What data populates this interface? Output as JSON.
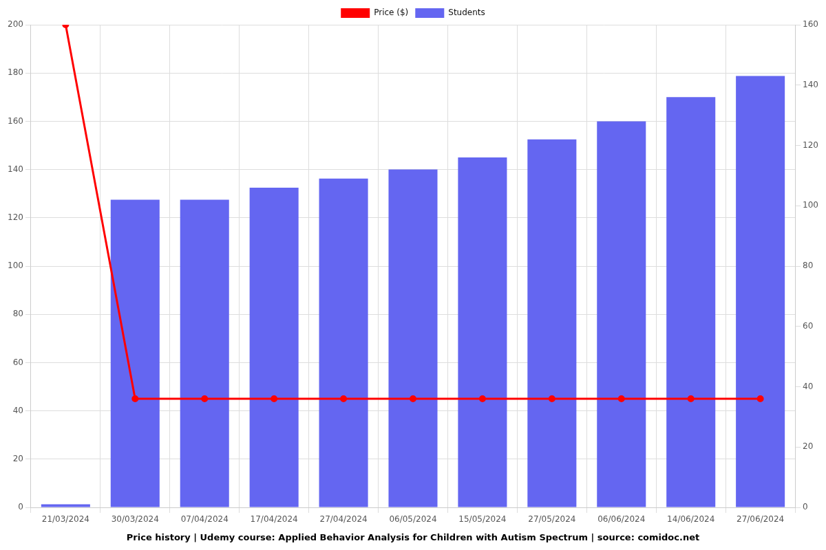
{
  "chart_data": {
    "type": "bar",
    "title": "Price history | Udemy course: Applied Behavior Analysis for Children with Autism Spectrum | source: comidoc.net",
    "categories": [
      "21/03/2024",
      "30/03/2024",
      "07/04/2024",
      "17/04/2024",
      "27/04/2024",
      "06/05/2024",
      "15/05/2024",
      "27/05/2024",
      "06/06/2024",
      "14/06/2024",
      "27/06/2024"
    ],
    "series": [
      {
        "name": "Price ($)",
        "type": "line",
        "color": "#ff0000",
        "marker": "circle",
        "line_style": "solid",
        "values": [
          200,
          45,
          45,
          45,
          45,
          45,
          45,
          45,
          45,
          45,
          45
        ]
      },
      {
        "name": "Students",
        "type": "bar",
        "color": "#6466f1",
        "axis": "y2",
        "values": [
          1,
          102,
          102,
          106,
          109,
          112,
          116,
          122,
          128,
          136,
          143
        ]
      }
    ],
    "ylim": [
      0,
      200
    ],
    "yticks": [
      0,
      20,
      40,
      60,
      80,
      100,
      120,
      140,
      160,
      180,
      200
    ],
    "y2lim": [
      0,
      160
    ],
    "y2ticks": [
      0,
      20,
      40,
      60,
      80,
      100,
      120,
      140,
      160
    ],
    "grid": true,
    "legend": "top"
  }
}
